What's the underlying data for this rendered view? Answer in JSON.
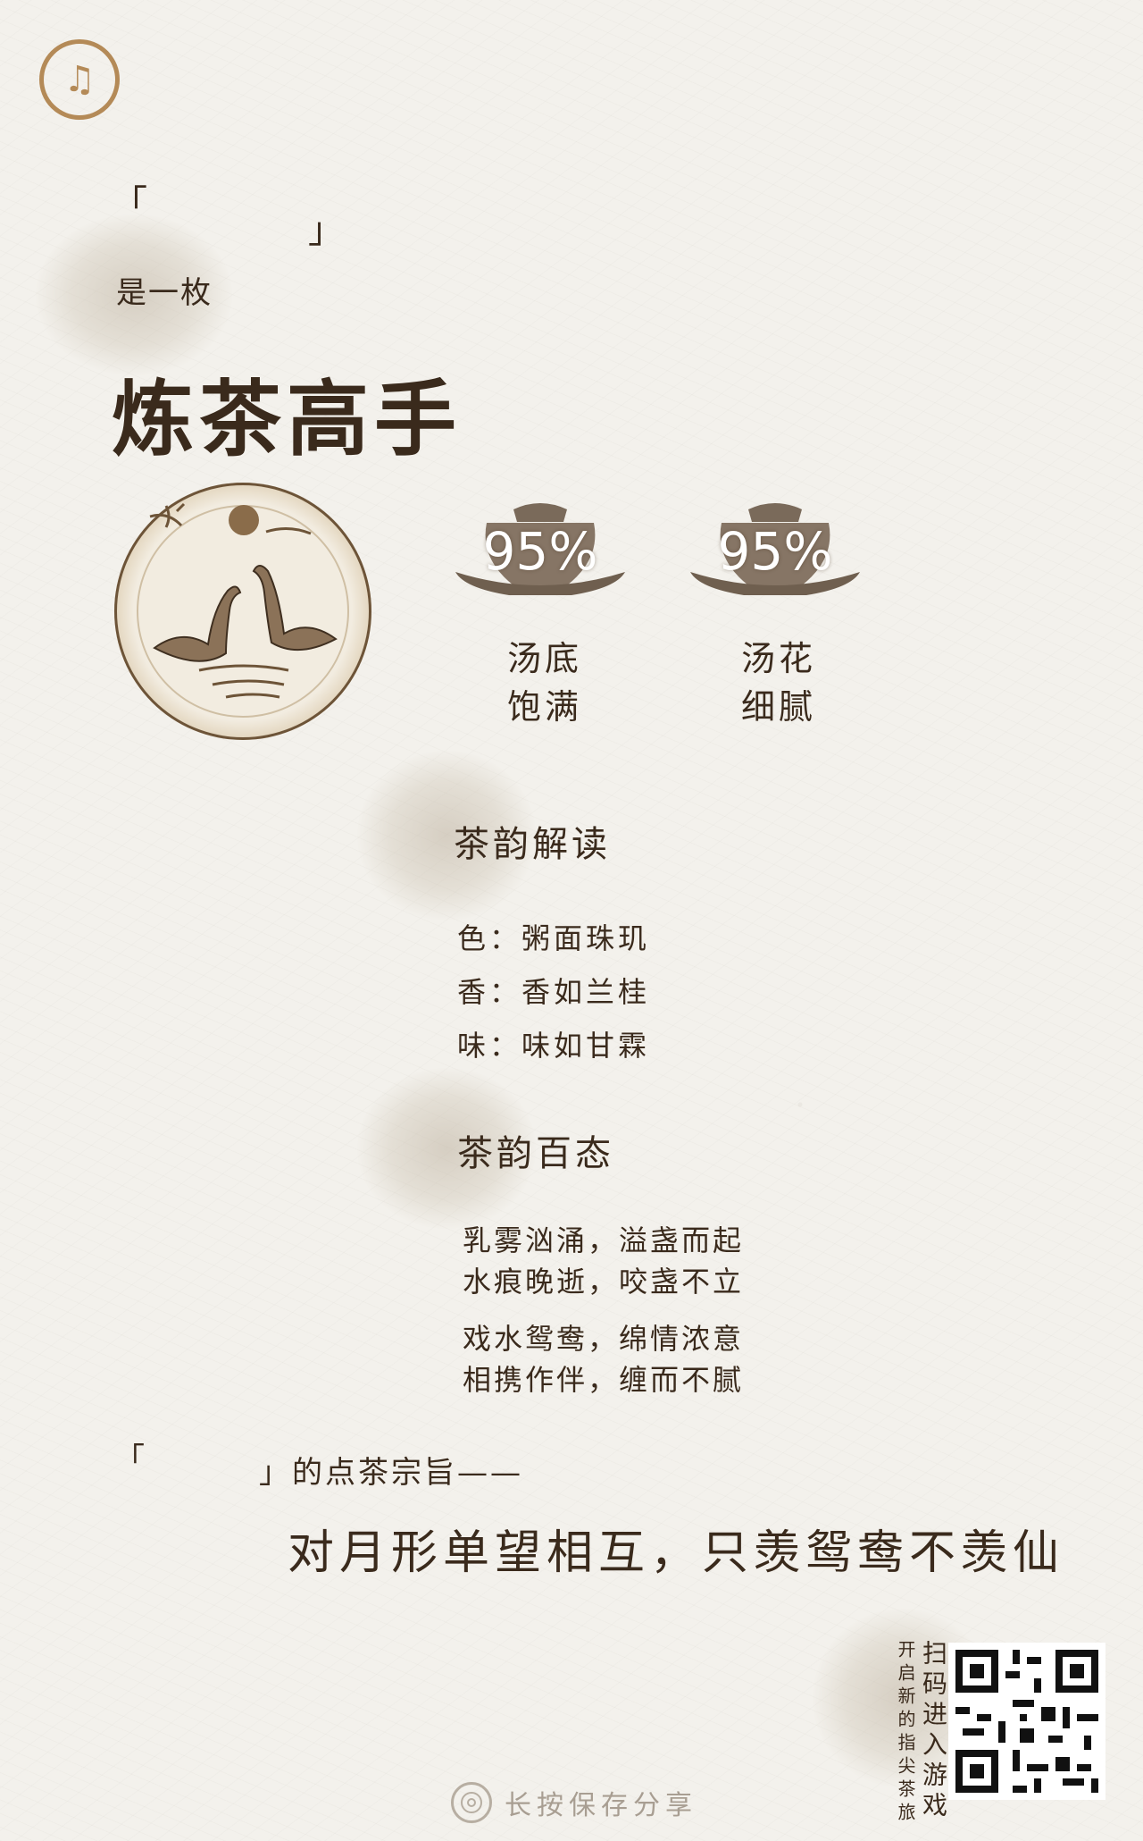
{
  "header": {
    "logo_glyph": "♫",
    "bracket_open": "「",
    "bracket_close": "」",
    "subtitle": "是一枚",
    "title": "炼茶高手"
  },
  "metrics": [
    {
      "value": "95%",
      "label_line1": "汤底",
      "label_line2": "饱满"
    },
    {
      "value": "95%",
      "label_line1": "汤花",
      "label_line2": "细腻"
    }
  ],
  "tea_reading": {
    "heading": "茶韵解读",
    "items": [
      "色：粥面珠玑",
      "香：香如兰桂",
      "味：味如甘霖"
    ]
  },
  "tea_states": {
    "heading": "茶韵百态",
    "lines": [
      "乳雾汹涌，溢盏而起",
      "水痕晚逝，咬盏不立",
      "戏水鸳鸯，绵情浓意",
      "相携作伴，缠而不腻"
    ]
  },
  "motto": {
    "bracket_open": "「",
    "suffix": "」的点茶宗旨——",
    "text": "对月形单望相互，只羡鸳鸯不羡仙"
  },
  "qr_section": {
    "line1": "开启新的指尖茶旅",
    "line2": "扫码进入游戏"
  },
  "save_hint": "长按保存分享",
  "colors": {
    "ink": "#3a2a1c",
    "logo": "#b48a57",
    "paper": "#f3f1ec"
  }
}
